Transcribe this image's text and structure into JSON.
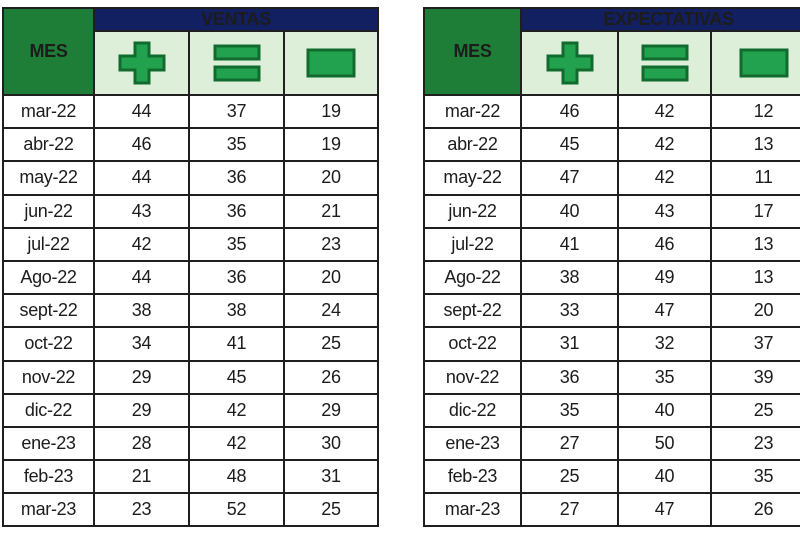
{
  "colors": {
    "header_navy": "#121f60",
    "mes_green": "#1e7e38",
    "icon_row_bg": "#ddefd8",
    "icon_fill": "#22a24f",
    "icon_stroke": "#116b2e",
    "grid_line": "#1f1f1f",
    "text": "#1c1c1c",
    "page_bg": "#ffffff"
  },
  "chart_data": [
    {
      "type": "table",
      "title": "VENTAS",
      "row_header": "MES",
      "column_icons": [
        "plus-icon",
        "equals-icon",
        "minus-icon"
      ],
      "rows": [
        {
          "mes": "mar-22",
          "values": [
            44,
            37,
            19
          ]
        },
        {
          "mes": "abr-22",
          "values": [
            46,
            35,
            19
          ]
        },
        {
          "mes": "may-22",
          "values": [
            44,
            36,
            20
          ]
        },
        {
          "mes": "jun-22",
          "values": [
            43,
            36,
            21
          ]
        },
        {
          "mes": "jul-22",
          "values": [
            42,
            35,
            23
          ]
        },
        {
          "mes": "Ago-22",
          "values": [
            44,
            36,
            20
          ]
        },
        {
          "mes": "sept-22",
          "values": [
            38,
            38,
            24
          ]
        },
        {
          "mes": "oct-22",
          "values": [
            34,
            41,
            25
          ]
        },
        {
          "mes": "nov-22",
          "values": [
            29,
            45,
            26
          ]
        },
        {
          "mes": "dic-22",
          "values": [
            29,
            42,
            29
          ]
        },
        {
          "mes": "ene-23",
          "values": [
            28,
            42,
            30
          ]
        },
        {
          "mes": "feb-23",
          "values": [
            21,
            48,
            31
          ]
        },
        {
          "mes": "mar-23",
          "values": [
            23,
            52,
            25
          ]
        }
      ]
    },
    {
      "type": "table",
      "title": "EXPECTATIVAS",
      "row_header": "MES",
      "column_icons": [
        "plus-icon",
        "equals-icon",
        "minus-icon"
      ],
      "rows": [
        {
          "mes": "mar-22",
          "values": [
            46,
            42,
            12
          ]
        },
        {
          "mes": "abr-22",
          "values": [
            45,
            42,
            13
          ]
        },
        {
          "mes": "may-22",
          "values": [
            47,
            42,
            11
          ]
        },
        {
          "mes": "jun-22",
          "values": [
            40,
            43,
            17
          ]
        },
        {
          "mes": "jul-22",
          "values": [
            41,
            46,
            13
          ]
        },
        {
          "mes": "Ago-22",
          "values": [
            38,
            49,
            13
          ]
        },
        {
          "mes": "sept-22",
          "values": [
            33,
            47,
            20
          ]
        },
        {
          "mes": "oct-22",
          "values": [
            31,
            32,
            37
          ]
        },
        {
          "mes": "nov-22",
          "values": [
            36,
            35,
            39
          ]
        },
        {
          "mes": "dic-22",
          "values": [
            35,
            40,
            25
          ]
        },
        {
          "mes": "ene-23",
          "values": [
            27,
            50,
            23
          ]
        },
        {
          "mes": "feb-23",
          "values": [
            25,
            40,
            35
          ]
        },
        {
          "mes": "mar-23",
          "values": [
            27,
            47,
            26
          ]
        }
      ]
    }
  ]
}
